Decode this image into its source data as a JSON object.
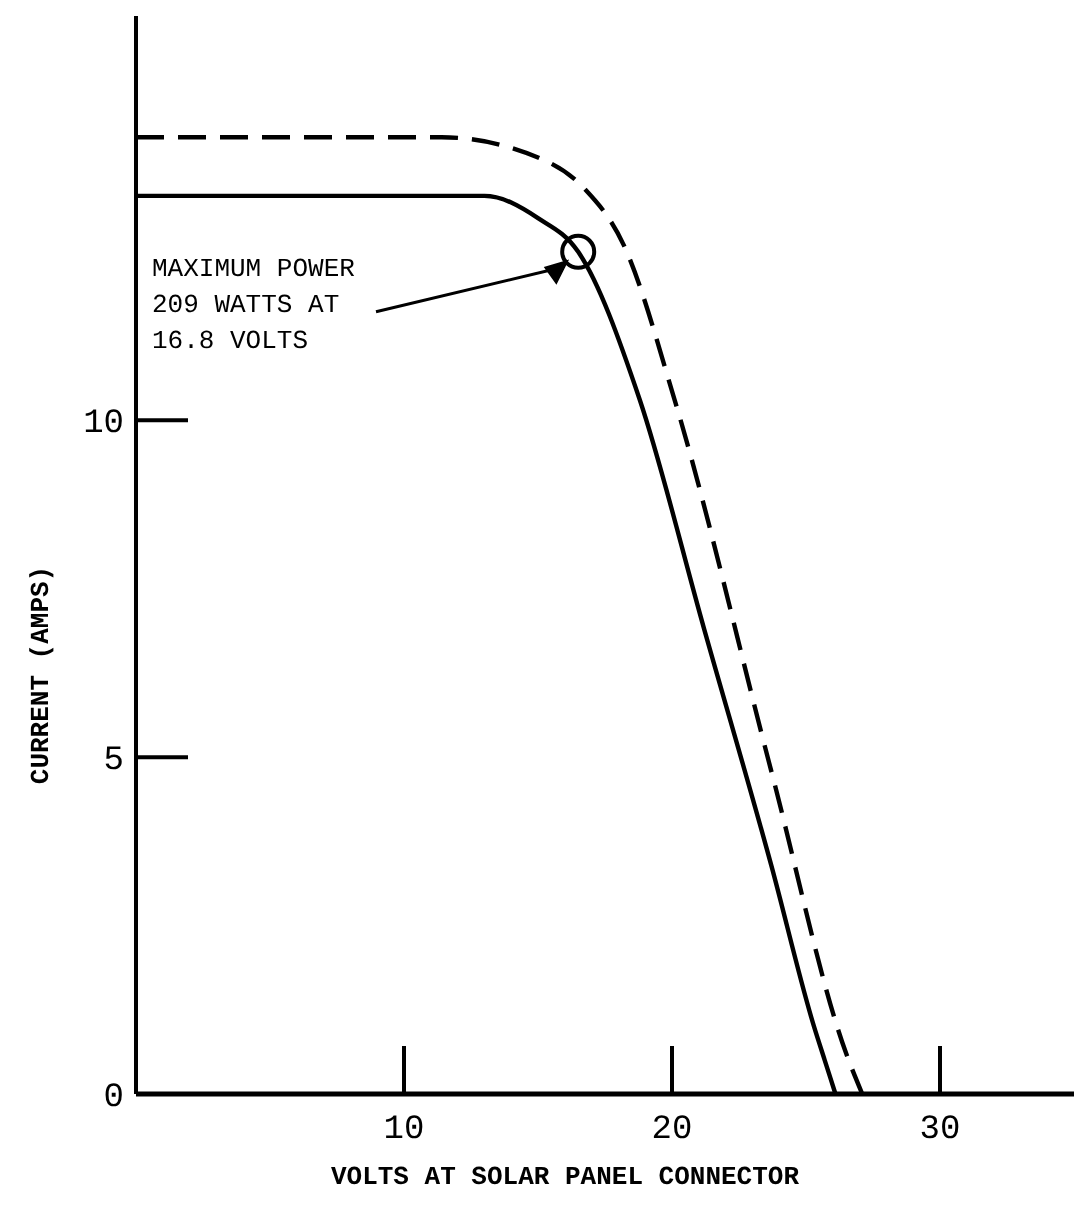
{
  "chart_data": {
    "type": "line",
    "xlabel": "VOLTS AT SOLAR PANEL CONNECTOR",
    "ylabel": "CURRENT (AMPS)",
    "xlim": [
      0,
      35
    ],
    "ylim": [
      0,
      16
    ],
    "xticks": [
      10,
      20,
      30
    ],
    "yticks": [
      0,
      5,
      10
    ],
    "grid": false,
    "marker": "none",
    "series": [
      {
        "color": "#000000",
        "line_style": "solid",
        "x": [
          0,
          13,
          15,
          16.5,
          18.8,
          21.2,
          23.7,
          25.3,
          25.7,
          26.1
        ],
        "values": [
          13.33,
          13.33,
          13.0,
          12.5,
          10.3,
          6.9,
          3.4,
          1.0,
          0.5,
          0
        ]
      },
      {
        "color": "#000000",
        "line_style": "dashed",
        "x": [
          0,
          11.4,
          15,
          16.7,
          18.2,
          20.1,
          23.7,
          26.5,
          27.1
        ],
        "values": [
          14.2,
          14.2,
          13.9,
          13.45,
          12.6,
          10.3,
          4.8,
          0.6,
          0
        ]
      }
    ],
    "annotations": [
      "MAXIMUM POWER\n209 WATTS AT\n16.8 VOLTS"
    ]
  }
}
